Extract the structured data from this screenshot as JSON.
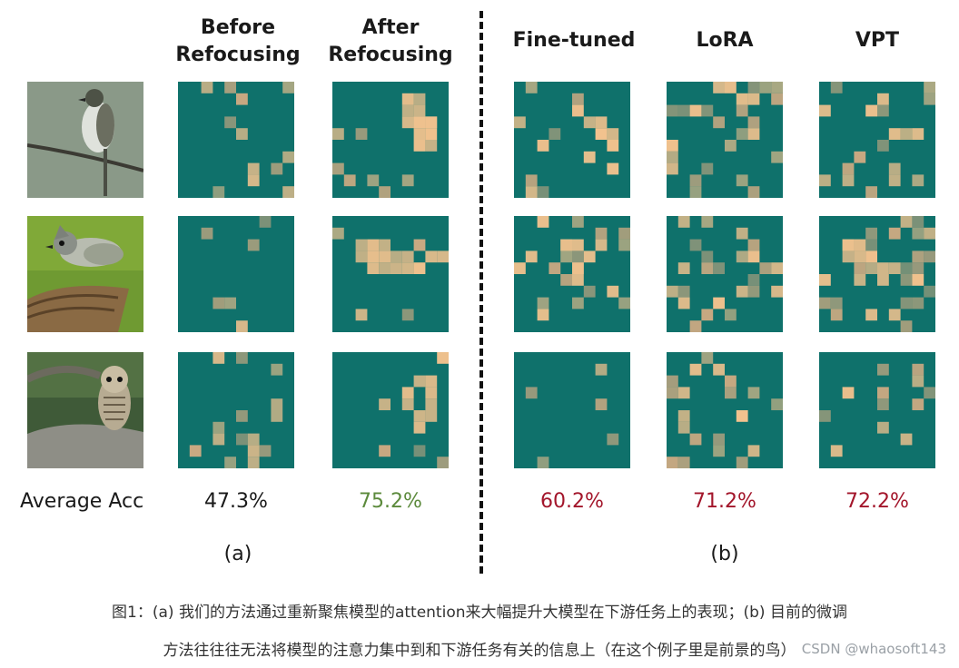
{
  "figure": {
    "columns": [
      {
        "key": "before",
        "label": "Before\nRefocusing"
      },
      {
        "key": "after",
        "label": "After\nRefocusing"
      },
      {
        "key": "finetuned",
        "label": "Fine-tuned"
      },
      {
        "key": "lora",
        "label": "LoRA"
      },
      {
        "key": "vpt",
        "label": "VPT"
      }
    ],
    "row_label": "Average Acc",
    "accuracies": [
      {
        "value": "47.3%",
        "color": "#1a1a1a"
      },
      {
        "value": "75.2%",
        "color": "#5c8a3c"
      },
      {
        "value": "60.2%",
        "color": "#a3162b"
      },
      {
        "value": "71.2%",
        "color": "#a3162b"
      },
      {
        "value": "72.2%",
        "color": "#a3162b"
      }
    ],
    "subfigure_labels": {
      "a": "(a)",
      "b": "(b)"
    },
    "rows": [
      {
        "photo": "bird-on-branch-photo"
      },
      {
        "photo": "titmouse-photo"
      },
      {
        "photo": "owl-photo"
      }
    ],
    "colors": {
      "heatmap_background": "#0f716b",
      "hot": "#f2c28e",
      "warm": "#c9a982"
    }
  },
  "caption": {
    "line1": "图1：(a) 我们的方法通过重新聚焦模型的attention来大幅提升大模型在下游任务上的表现；(b) 目前的微调",
    "line2": "方法往往往无法将模型的注意力集中到和下游任务有关的信息上（在这个例子里是前景的鸟）"
  },
  "watermark": "CSDN @whaosoft143"
}
